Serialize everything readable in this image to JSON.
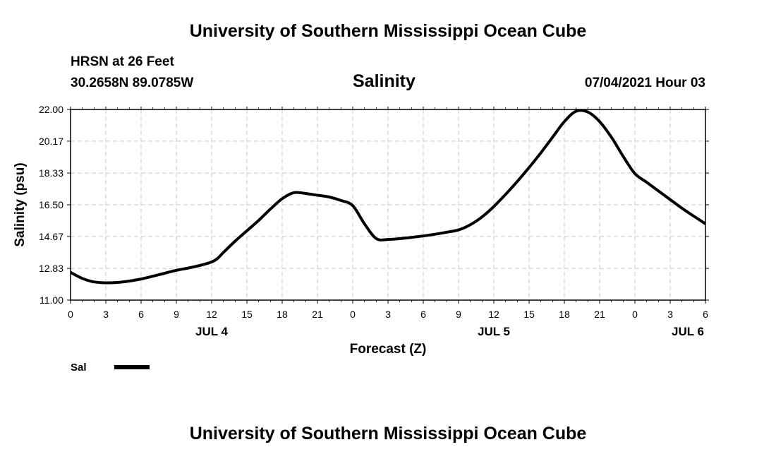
{
  "header": {
    "title": "University of Southern Mississippi Ocean Cube",
    "station": "HRSN at 26 Feet",
    "coords": "30.2658N  89.0785W",
    "timestamp": "07/04/2021 Hour 03"
  },
  "footer": {
    "title": "University of Southern Mississippi Ocean Cube"
  },
  "legend": {
    "label": "Sal",
    "color": "#000000"
  },
  "chart_data": {
    "type": "line",
    "title": "Salinity",
    "xlabel": "Forecast (Z)",
    "ylabel": "Salinity (psu)",
    "x_range_hours": [
      0,
      54
    ],
    "ylim": [
      11.0,
      22.0
    ],
    "y_ticks": [
      "11.00",
      "12.83",
      "14.67",
      "16.50",
      "18.33",
      "20.17",
      "22.00"
    ],
    "x_ticks": [
      {
        "hour": 0,
        "label": "0"
      },
      {
        "hour": 3,
        "label": "3"
      },
      {
        "hour": 6,
        "label": "6"
      },
      {
        "hour": 9,
        "label": "9"
      },
      {
        "hour": 12,
        "label": "12"
      },
      {
        "hour": 15,
        "label": "15"
      },
      {
        "hour": 18,
        "label": "18"
      },
      {
        "hour": 21,
        "label": "21"
      },
      {
        "hour": 24,
        "label": "0"
      },
      {
        "hour": 27,
        "label": "3"
      },
      {
        "hour": 30,
        "label": "6"
      },
      {
        "hour": 33,
        "label": "9"
      },
      {
        "hour": 36,
        "label": "12"
      },
      {
        "hour": 39,
        "label": "15"
      },
      {
        "hour": 42,
        "label": "18"
      },
      {
        "hour": 45,
        "label": "21"
      },
      {
        "hour": 48,
        "label": "0"
      },
      {
        "hour": 51,
        "label": "3"
      },
      {
        "hour": 54,
        "label": "6"
      }
    ],
    "date_labels": [
      {
        "hour": 12,
        "label": "JUL 4"
      },
      {
        "hour": 36,
        "label": "JUL 5"
      },
      {
        "hour": 52.5,
        "label": "JUL 6"
      }
    ],
    "grid": true,
    "series": [
      {
        "name": "Sal",
        "x": [
          0,
          1,
          2,
          3,
          4,
          5,
          6,
          7,
          8,
          9,
          10,
          11,
          12,
          12.5,
          13,
          14,
          15,
          16,
          17,
          18,
          19,
          20,
          21,
          22,
          23,
          24,
          25,
          26,
          27,
          28,
          29,
          30,
          31,
          32,
          33,
          34,
          35,
          36,
          37,
          38,
          39,
          40,
          41,
          42,
          43,
          44,
          45,
          46,
          47,
          48,
          49,
          50,
          51,
          52,
          53,
          54
        ],
        "y": [
          12.6,
          12.25,
          12.05,
          12.0,
          12.02,
          12.1,
          12.22,
          12.38,
          12.55,
          12.72,
          12.85,
          13.0,
          13.2,
          13.4,
          13.75,
          14.4,
          15.0,
          15.6,
          16.25,
          16.85,
          17.2,
          17.15,
          17.05,
          16.95,
          16.75,
          16.45,
          15.4,
          14.55,
          14.5,
          14.55,
          14.62,
          14.7,
          14.8,
          14.92,
          15.05,
          15.35,
          15.8,
          16.4,
          17.1,
          17.85,
          18.65,
          19.5,
          20.4,
          21.3,
          21.9,
          21.85,
          21.3,
          20.4,
          19.3,
          18.3,
          17.8,
          17.3,
          16.8,
          16.3,
          15.85,
          15.4
        ]
      }
    ]
  }
}
